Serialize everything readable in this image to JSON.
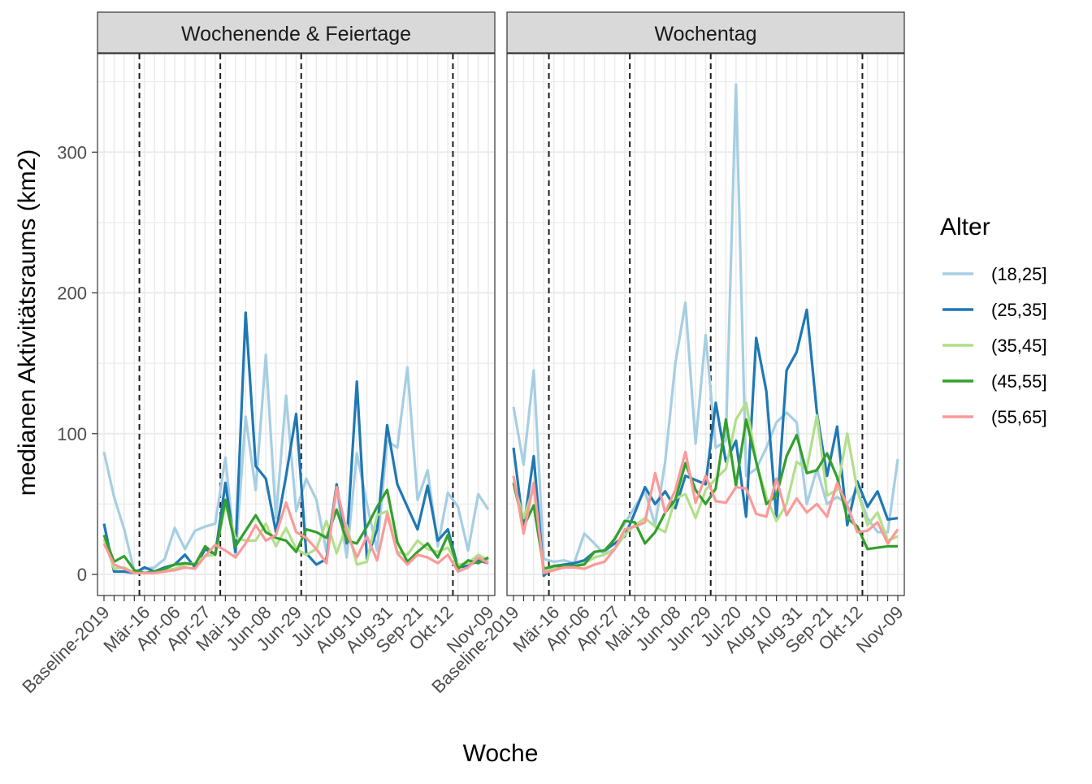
{
  "chart_data": {
    "type": "line",
    "xlabel": "Woche",
    "ylabel": "medianen Aktivitätsraums (km2)",
    "ylim": [
      -15,
      370
    ],
    "yticks": [
      0,
      100,
      200,
      300
    ],
    "x_tick_labels": [
      "Baseline-2019",
      "Mär-16",
      "Apr-06",
      "Apr-27",
      "Mai-18",
      "Jun-08",
      "Jun-29",
      "Jul-20",
      "Aug-10",
      "Aug-31",
      "Sep-21",
      "Okt-12",
      "Nov-09"
    ],
    "x_tick_positions": [
      1,
      5,
      8,
      11,
      14,
      17,
      20,
      23,
      26,
      29,
      32,
      35,
      39
    ],
    "vlines": [
      4.5,
      12.5,
      20.5,
      35.5
    ],
    "grid": true,
    "legend": {
      "title": "Alter",
      "position": "right"
    },
    "panels": [
      {
        "title": "Wochenende & Feiertage",
        "series": [
          {
            "name": "(18,25]",
            "color": "#A6CEE3",
            "values": [
              87,
              55,
              32,
              2,
              4,
              5,
              11,
              33,
              18,
              31,
              34,
              36,
              83,
              12,
              112,
              60,
              156,
              40,
              127,
              45,
              68,
              53,
              16,
              62,
              12,
              86,
              50,
              17,
              95,
              90,
              147,
              53,
              74,
              20,
              58,
              48,
              17,
              57,
              46
            ]
          },
          {
            "name": "(25,35]",
            "color": "#1F78B4",
            "values": [
              36,
              2,
              2,
              1,
              5,
              2,
              5,
              7,
              14,
              5,
              18,
              14,
              65,
              16,
              186,
              77,
              68,
              30,
              70,
              114,
              15,
              7,
              11,
              64,
              22,
              137,
              11,
              32,
              106,
              64,
              48,
              32,
              63,
              24,
              32,
              5,
              6,
              10,
              8
            ]
          },
          {
            "name": "(35,45]",
            "color": "#B2DF8A",
            "values": [
              25,
              4,
              5,
              1,
              1,
              2,
              3,
              4,
              7,
              8,
              13,
              14,
              50,
              26,
              24,
              24,
              36,
              20,
              33,
              18,
              14,
              18,
              38,
              15,
              35,
              7,
              9,
              42,
              45,
              16,
              14,
              24,
              18,
              16,
              19,
              7,
              8,
              14,
              10
            ]
          },
          {
            "name": "(45,55]",
            "color": "#33A02C",
            "values": [
              28,
              9,
              13,
              3,
              1,
              2,
              4,
              7,
              8,
              7,
              20,
              14,
              53,
              20,
              31,
              42,
              30,
              26,
              24,
              16,
              32,
              30,
              26,
              46,
              24,
              22,
              34,
              48,
              60,
              23,
              9,
              16,
              22,
              12,
              28,
              4,
              10,
              8,
              12
            ]
          },
          {
            "name": "(55,65]",
            "color": "#FB9A99",
            "values": [
              22,
              7,
              4,
              1,
              1,
              1,
              2,
              3,
              5,
              4,
              13,
              21,
              17,
              12,
              22,
              35,
              24,
              28,
              51,
              30,
              26,
              18,
              8,
              62,
              30,
              12,
              27,
              10,
              43,
              15,
              7,
              14,
              12,
              8,
              14,
              2,
              5,
              12,
              8
            ]
          }
        ]
      },
      {
        "title": "Wochentag",
        "series": [
          {
            "name": "(18,25]",
            "color": "#A6CEE3",
            "values": [
              119,
              78,
              145,
              11,
              9,
              10,
              8,
              29,
              22,
              14,
              26,
              36,
              48,
              59,
              35,
              80,
              150,
              193,
              93,
              170,
              90,
              95,
              348,
              70,
              75,
              90,
              108,
              115,
              108,
              50,
              75,
              50,
              55,
              50,
              60,
              40,
              30,
              30,
              82
            ]
          },
          {
            "name": "(25,35]",
            "color": "#1F78B4",
            "values": [
              90,
              33,
              84,
              -1,
              6,
              7,
              8,
              10,
              16,
              17,
              22,
              27,
              44,
              62,
              50,
              59,
              47,
              70,
              67,
              64,
              122,
              80,
              95,
              41,
              168,
              130,
              40,
              145,
              158,
              188,
              115,
              70,
              105,
              35,
              66,
              48,
              59,
              39,
              40
            ]
          },
          {
            "name": "(35,45]",
            "color": "#B2DF8A",
            "values": [
              65,
              40,
              62,
              2,
              4,
              5,
              6,
              8,
              12,
              14,
              18,
              28,
              35,
              40,
              34,
              30,
              54,
              57,
              40,
              60,
              68,
              75,
              110,
              122,
              80,
              55,
              38,
              50,
              80,
              75,
              113,
              56,
              60,
              100,
              60,
              35,
              44,
              24,
              27
            ]
          },
          {
            "name": "(45,55]",
            "color": "#33A02C",
            "values": [
              65,
              34,
              49,
              4,
              6,
              6,
              6,
              7,
              16,
              17,
              25,
              38,
              37,
              22,
              30,
              44,
              53,
              79,
              60,
              50,
              61,
              110,
              63,
              110,
              80,
              50,
              56,
              84,
              99,
              72,
              74,
              86,
              69,
              40,
              34,
              18,
              19,
              20,
              20
            ]
          },
          {
            "name": "(55,65]",
            "color": "#FB9A99",
            "values": [
              70,
              29,
              65,
              1,
              3,
              5,
              5,
              4,
              7,
              9,
              18,
              32,
              34,
              37,
              72,
              44,
              60,
              87,
              51,
              70,
              52,
              51,
              62,
              61,
              43,
              41,
              68,
              42,
              54,
              44,
              50,
              41,
              65,
              49,
              30,
              31,
              37,
              22,
              32
            ]
          }
        ]
      }
    ]
  }
}
